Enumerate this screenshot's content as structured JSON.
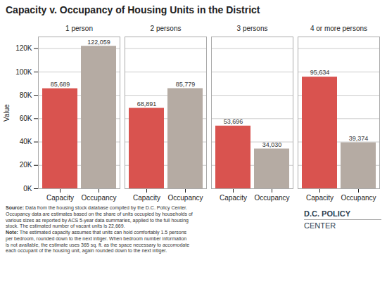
{
  "chart_data": {
    "type": "bar",
    "title": "Capacity v. Occupancy of Housing Units in the District",
    "categories": [
      "1 person",
      "2 persons",
      "3 persons",
      "4 or more persons"
    ],
    "series": [
      {
        "name": "Capacity",
        "color": "#d9534f",
        "values": [
          85689,
          68891,
          53696,
          95634
        ],
        "value_labels": [
          "85,689",
          "68,891",
          "53,696",
          "95,634"
        ]
      },
      {
        "name": "Occupancy",
        "color": "#b5aba3",
        "values": [
          122059,
          85779,
          34030,
          39374
        ],
        "value_labels": [
          "122,059",
          "85,779",
          "34,030",
          "39,374"
        ]
      }
    ],
    "ylabel": "Value",
    "ylim": [
      0,
      130000
    ],
    "yticks": [
      {
        "value": 0,
        "label": "0K"
      },
      {
        "value": 20000,
        "label": "20K"
      },
      {
        "value": 40000,
        "label": "40K"
      },
      {
        "value": 60000,
        "label": "60K"
      },
      {
        "value": 80000,
        "label": "80K"
      },
      {
        "value": 100000,
        "label": "100K"
      },
      {
        "value": 120000,
        "label": "120K"
      }
    ],
    "grid": true,
    "data_labels": true,
    "source_label": "Source:",
    "source_text": " Data from the housing stock database compiled by the D.C. Policy Center.\nOccupancy data are estimates based on the share of units occupied by households of\nvarious sizes as reported by ACS 5-year data summaries, applied to the full housing\nstock. The estimated number of vacant units is 22,669.",
    "note_label": "Note:",
    "note_text": " The estimated capacity assumes that units can hold comfortably 1.5 persons\nper bedroom, rounded down to the next intiger. When bedroom number information\nis not available, the estimate uses 365 sq. ft. as the space necessary to accomodate\neach occupant of the housing unit, again rounded down to the next intiger.",
    "annotations": [
      "D.C. POLICY",
      "CENTER"
    ]
  }
}
